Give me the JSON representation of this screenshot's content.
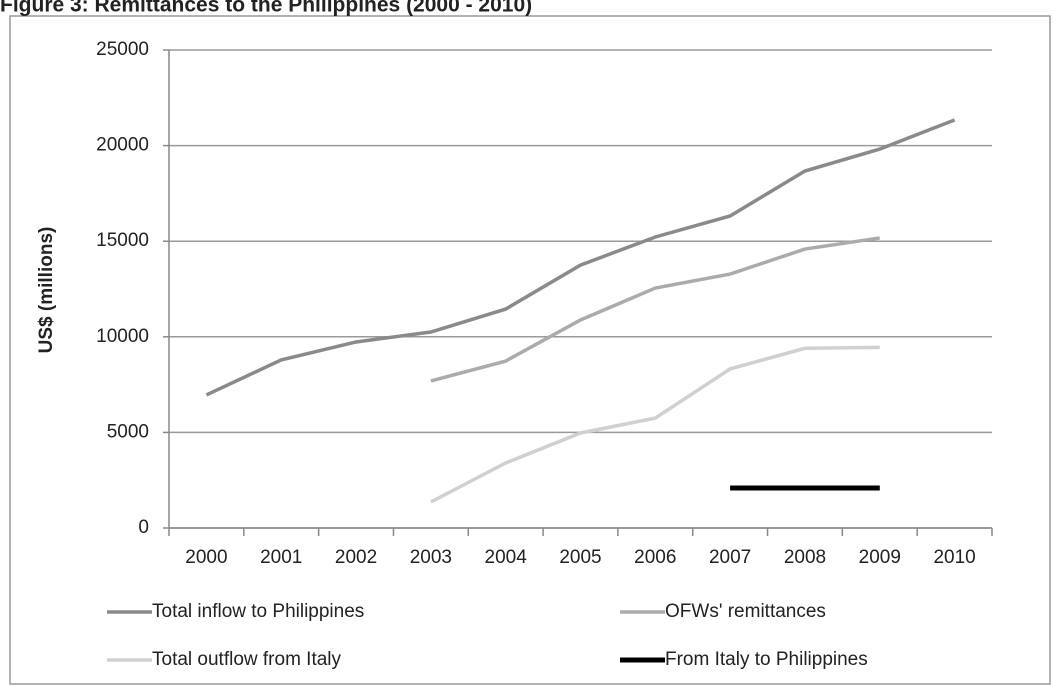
{
  "chart_data": {
    "type": "line",
    "title": "Figure 3: Remittances to the Philippines (2000 - 2010)",
    "ylabel": "US$ (millions)",
    "categories": [
      "2000",
      "2001",
      "2002",
      "2003",
      "2004",
      "2005",
      "2006",
      "2007",
      "2008",
      "2009",
      "2010"
    ],
    "series": [
      {
        "name": "Total inflow to Philippines",
        "color": "#8a8a8a",
        "values": [
          6960,
          8790,
          9730,
          10250,
          11450,
          13750,
          15220,
          16320,
          18670,
          19820,
          21340
        ]
      },
      {
        "name": "OFWs' remittances",
        "color": "#ababab",
        "values": [
          null,
          null,
          null,
          7690,
          8730,
          10880,
          12550,
          13280,
          14590,
          15170,
          null
        ]
      },
      {
        "name": "Total outflow from Italy",
        "color": "#d0d0d0",
        "values": [
          null,
          null,
          null,
          1360,
          3400,
          4970,
          5750,
          8320,
          9400,
          9450,
          null
        ]
      },
      {
        "name": "From Italy to Philippines",
        "color": "#000000",
        "values": [
          null,
          null,
          null,
          null,
          null,
          null,
          null,
          2090,
          2090,
          2090,
          null
        ]
      }
    ],
    "ylim": [
      0,
      25000
    ],
    "yticks": [
      0,
      5000,
      10000,
      15000,
      20000,
      25000
    ],
    "grid": true
  }
}
